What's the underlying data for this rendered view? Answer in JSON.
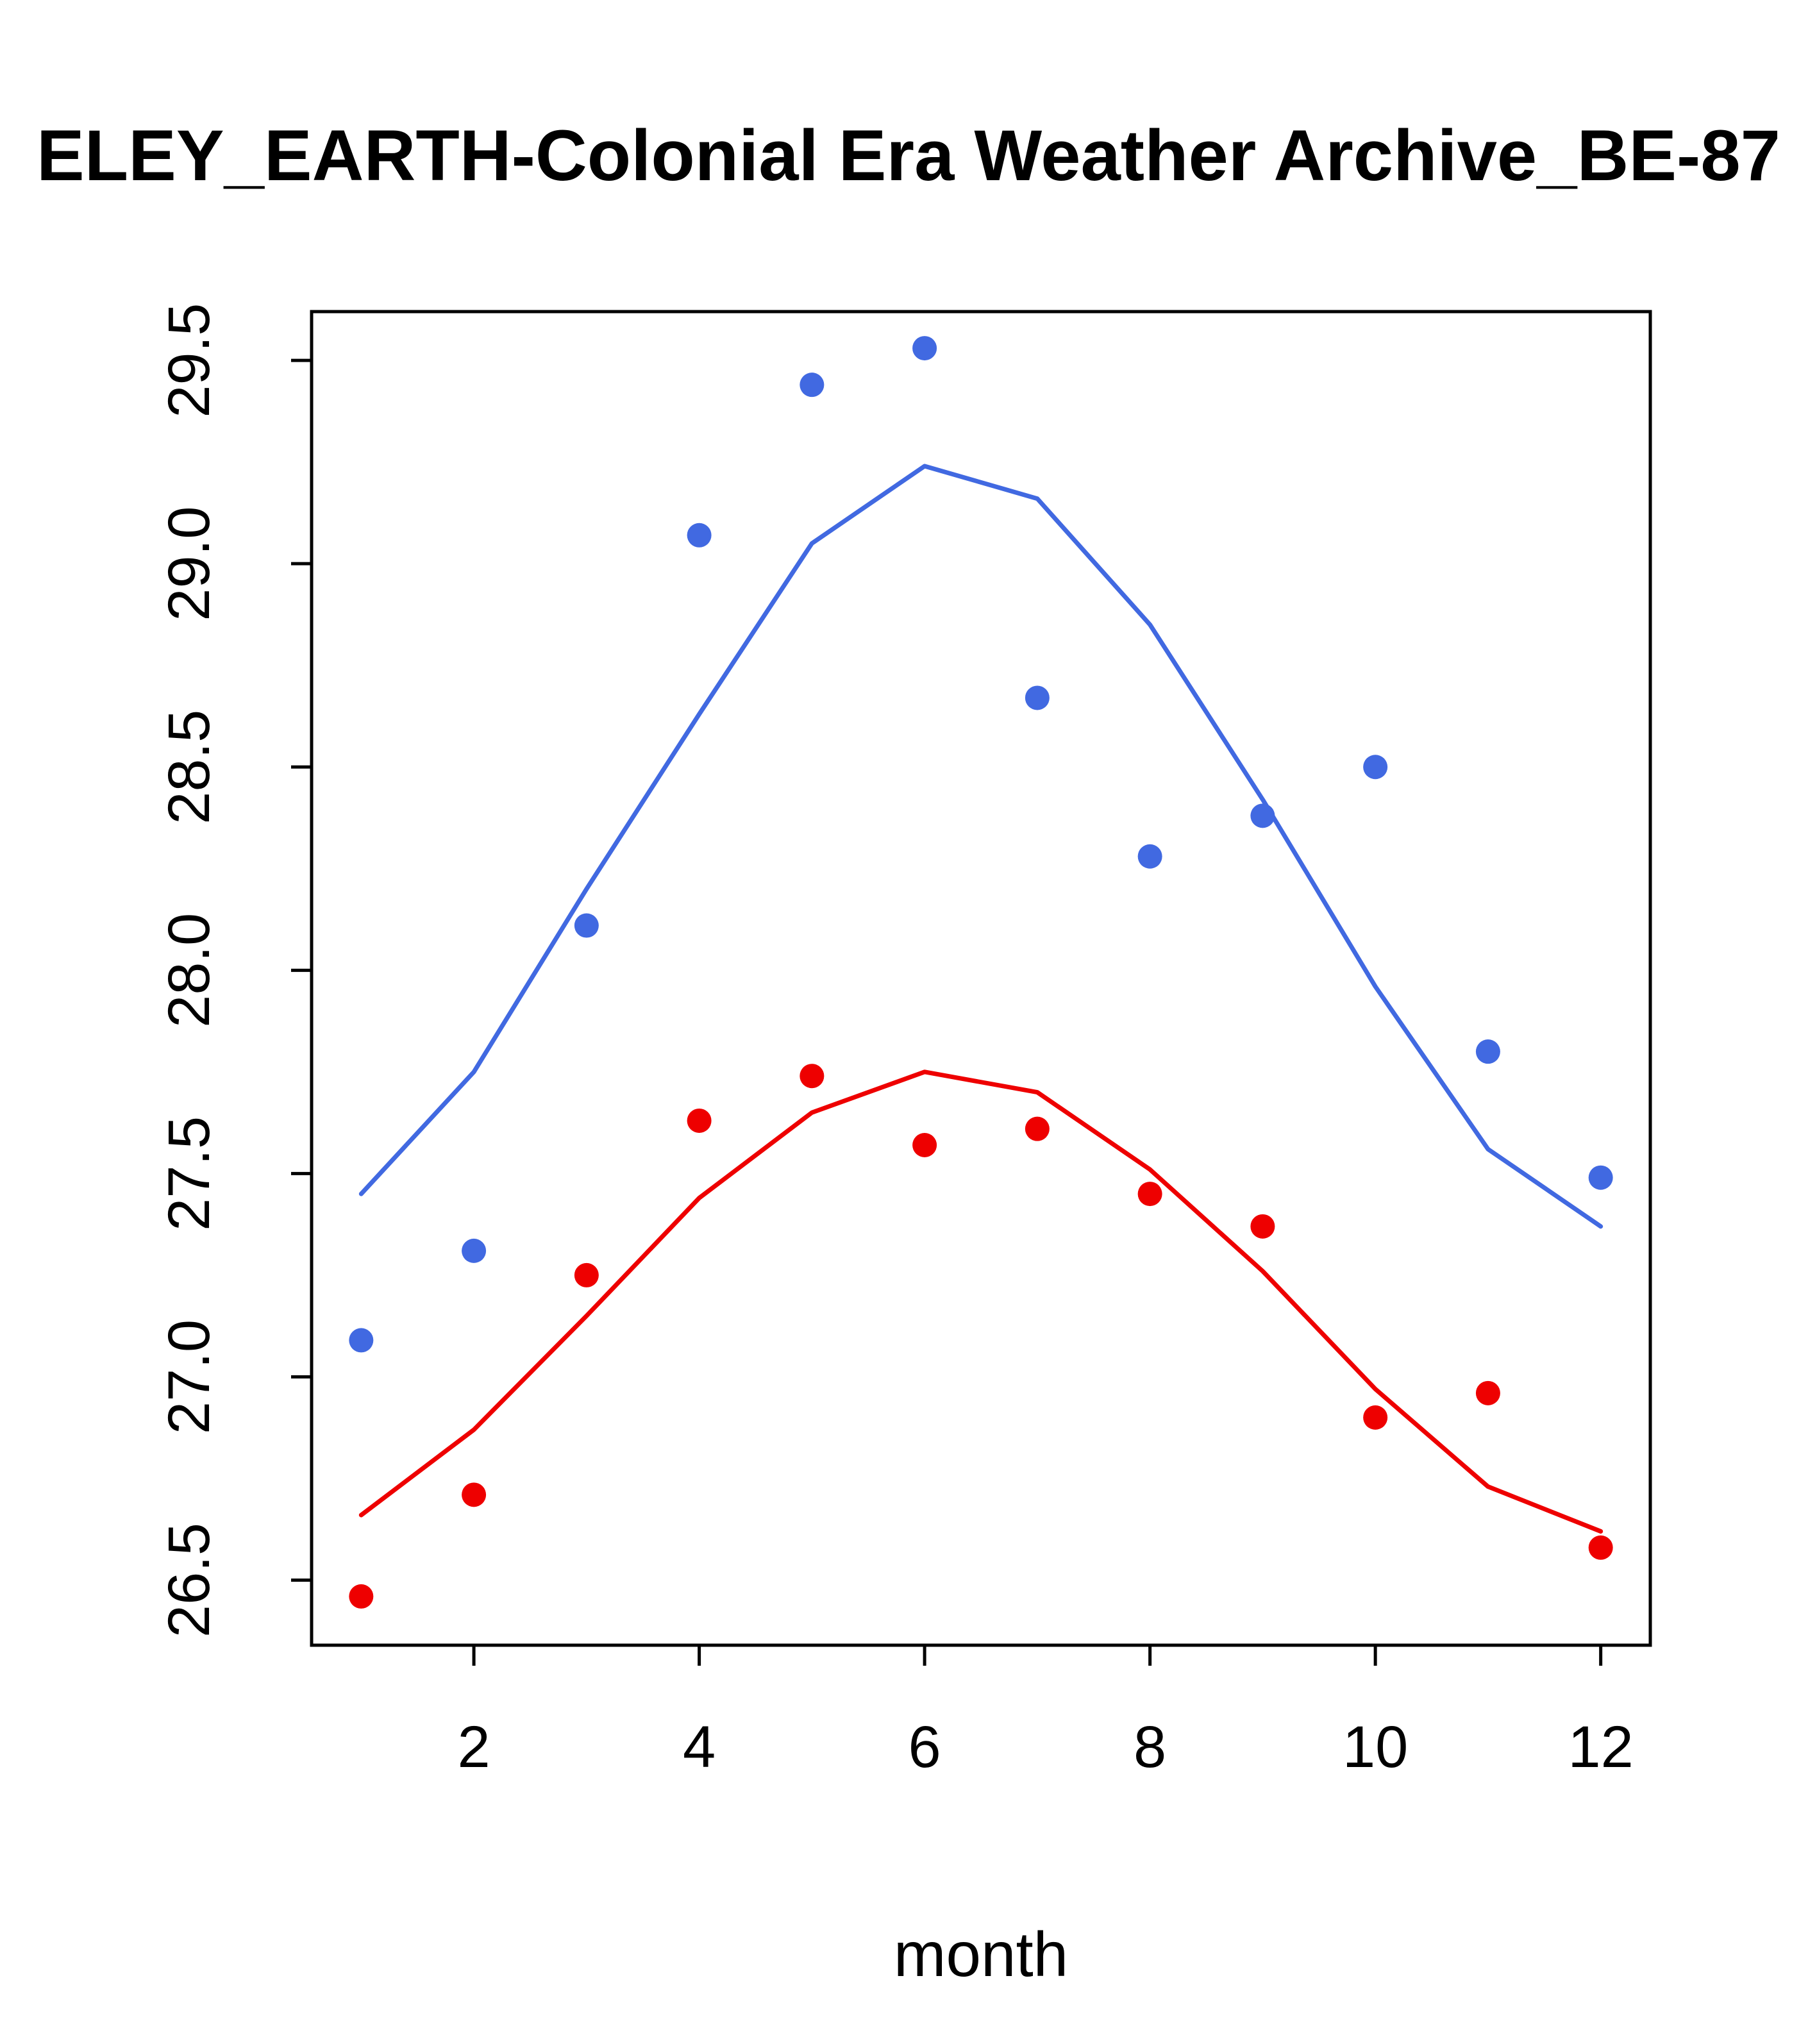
{
  "chart_data": {
    "type": "scatter+line",
    "title": "ELEY_EARTH-Colonial Era Weather Archive_BE-87",
    "xlabel": "month",
    "ylabel": "",
    "x": [
      1,
      2,
      3,
      4,
      5,
      6,
      7,
      8,
      9,
      10,
      11,
      12
    ],
    "series": [
      {
        "name": "blue-observations",
        "style": "points",
        "color": "#4169E1",
        "values": [
          27.09,
          27.31,
          28.11,
          29.07,
          29.44,
          29.53,
          28.67,
          28.28,
          28.38,
          28.5,
          27.8,
          27.49
        ]
      },
      {
        "name": "blue-fit-curve",
        "style": "line",
        "color": "#4169E1",
        "values": [
          27.45,
          27.75,
          28.2,
          28.63,
          29.05,
          29.24,
          29.16,
          28.85,
          28.42,
          27.96,
          27.56,
          27.37
        ]
      },
      {
        "name": "red-observations",
        "style": "points",
        "color": "#EE0000",
        "values": [
          26.46,
          26.71,
          27.25,
          27.63,
          27.74,
          27.57,
          27.61,
          27.45,
          27.37,
          26.9,
          26.96,
          26.58
        ]
      },
      {
        "name": "red-fit-curve",
        "style": "line",
        "color": "#EE0000",
        "values": [
          26.66,
          26.87,
          27.15,
          27.44,
          27.65,
          27.75,
          27.7,
          27.51,
          27.26,
          26.97,
          26.73,
          26.62
        ]
      }
    ],
    "xticks": [
      2,
      4,
      6,
      8,
      10,
      12
    ],
    "xtick_labels": [
      "2",
      "4",
      "6",
      "8",
      "10",
      "12"
    ],
    "yticks": [
      26.5,
      27.0,
      27.5,
      28.0,
      28.5,
      29.0,
      29.5
    ],
    "ytick_labels": [
      "26.5",
      "27.0",
      "27.5",
      "28.0",
      "28.5",
      "29.0",
      "29.5"
    ],
    "xlim": [
      0.56,
      12.44
    ],
    "ylim": [
      26.34,
      29.62
    ],
    "grid": false,
    "legend": "none",
    "axis_color": "#000000",
    "background_color": "#FFFFFF"
  }
}
